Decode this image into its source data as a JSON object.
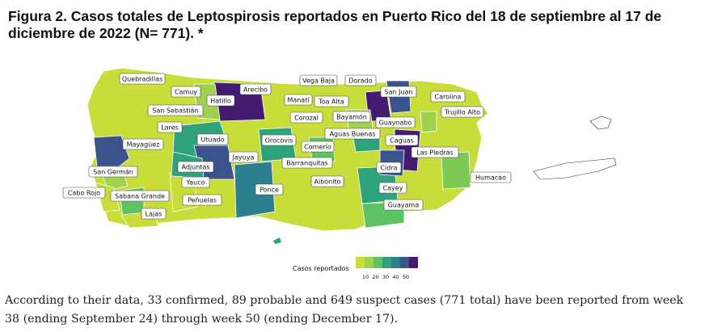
{
  "title": "Figura 2. Casos totales de Leptospirosis reportados en Puerto Rico del 18 de septiembre al 17 de diciembre de 2022 (N= 771). *",
  "caption": "According to their data, 33 confirmed, 89 probable and 649 suspect cases (771 total) have been reported from week 38 (ending September 24) through week 50 (ending December 17).",
  "colors": {
    "low": "#c8dc3a",
    "lowmid": "#7cc954",
    "mid": "#2ea27a",
    "midhigh": "#2c7f8e",
    "high": "#3b528b",
    "top": "#451b6f",
    "other_islands": "#ffffff"
  },
  "legend": {
    "title": "Casos reportados",
    "ticks": [
      "10",
      "20",
      "30",
      "40",
      "50"
    ],
    "swatches": [
      "#c8dc3a",
      "#9ed24e",
      "#5ec263",
      "#2ea27a",
      "#2c7f8e",
      "#3b528b",
      "#451b6f"
    ]
  },
  "municipality_labels": [
    "Quebradillas",
    "Camuy",
    "Arecibo",
    "Vega Baja",
    "Dorado",
    "San Juan",
    "Hatillo",
    "Manatí",
    "Toa Alta",
    "Carolina",
    "San Sebastián",
    "Guaynabo",
    "Trujillo Alto",
    "Corozal",
    "Bayamón",
    "Lares",
    "Aguas Buenas",
    "Caguas",
    "Utuado",
    "Mayagüez",
    "Orocovis",
    "Comerío",
    "Las Piedras",
    "Jayuya",
    "Barranquitas",
    "Adjuntas",
    "Cidra",
    "San Germán",
    "Humacao",
    "Yauco",
    "Aibonito",
    "Cayey",
    "Ponce",
    "Cabo Rojo",
    "Sabana Grande",
    "Peñuelas",
    "Guayama",
    "Lajas"
  ]
}
